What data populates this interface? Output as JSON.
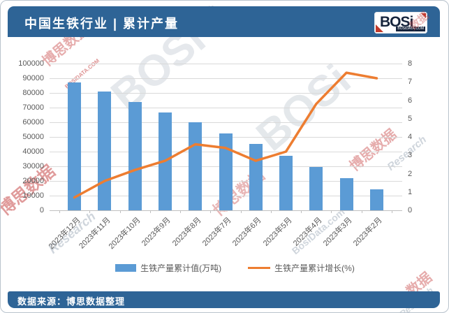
{
  "header": {
    "title": "中国生铁行业 | 累计产量",
    "logo": {
      "text": "BOSi",
      "site": "BOSIDATA.COM"
    }
  },
  "footer": {
    "source": "数据来源：博思数据整理"
  },
  "colors": {
    "header_bar": "#2e6496",
    "bar_series": "#5B9BD5",
    "line_series": "#ED7D31",
    "gridline": "#d9d9d9",
    "axis_text": "#595959"
  },
  "chart_data": {
    "type": "combo",
    "title": "",
    "categories": [
      "2023年12月",
      "2023年11月",
      "2023年10月",
      "2023年9月",
      "2023年8月",
      "2023年7月",
      "2023年6月",
      "2023年5月",
      "2023年4月",
      "2023年3月",
      "2023年2月"
    ],
    "series": [
      {
        "name": "生铁产量累计值(万吨)",
        "type": "bar",
        "axis": "left",
        "color": "#5B9BD5",
        "values": [
          87000,
          80900,
          74000,
          66800,
          59800,
          52400,
          45100,
          37200,
          29700,
          22100,
          14300
        ]
      },
      {
        "name": "生铁产量累计增长(%)",
        "type": "line",
        "axis": "right",
        "color": "#ED7D31",
        "values": [
          0.7,
          1.6,
          2.2,
          2.7,
          3.6,
          3.4,
          2.7,
          3.2,
          5.8,
          7.5,
          7.2
        ]
      }
    ],
    "left_axis": {
      "min": 0,
      "max": 100000,
      "step": 10000,
      "ticks_top_down": [
        "100000",
        "90000",
        "80000",
        "70000",
        "60000",
        "50000",
        "40000",
        "30000",
        "20000",
        "10000",
        "0"
      ]
    },
    "right_axis": {
      "min": 0,
      "max": 8,
      "step": 1,
      "ticks_top_down": [
        "8",
        "7",
        "6",
        "5",
        "4",
        "3",
        "2",
        "1",
        "0"
      ]
    },
    "legend_position": "bottom",
    "grid": true
  },
  "watermarks": [
    {
      "text": "博思数据",
      "cls": "wm0 wm-red"
    },
    {
      "text": "博思数据",
      "cls": "wm1 wm-red"
    },
    {
      "text": "Research",
      "cls": "wm2 wm-gray"
    },
    {
      "text": "BOSi",
      "cls": "wm3 wm-gray"
    },
    {
      "text": "BOSi",
      "cls": "wm4 wm-gray"
    },
    {
      "text": "博思数据",
      "cls": "wm5 wm-red"
    },
    {
      "text": "Research",
      "cls": "wm6 wm-gray"
    },
    {
      "text": "博思数据",
      "cls": "wm7 wm-red"
    },
    {
      "text": "BosiData.com",
      "cls": "wm8 wm-gray"
    },
    {
      "text": "数据",
      "cls": "wm9 wm-red"
    },
    {
      "text": "Research",
      "cls": "wm10 wm-gray"
    },
    {
      "text": "BOSIDATA.COM",
      "cls": "wm11 wm-red"
    },
    {
      "text": "数据",
      "cls": "wm12 wm-red"
    },
    {
      "text": "Research",
      "cls": "wm13 wm-gray"
    }
  ]
}
